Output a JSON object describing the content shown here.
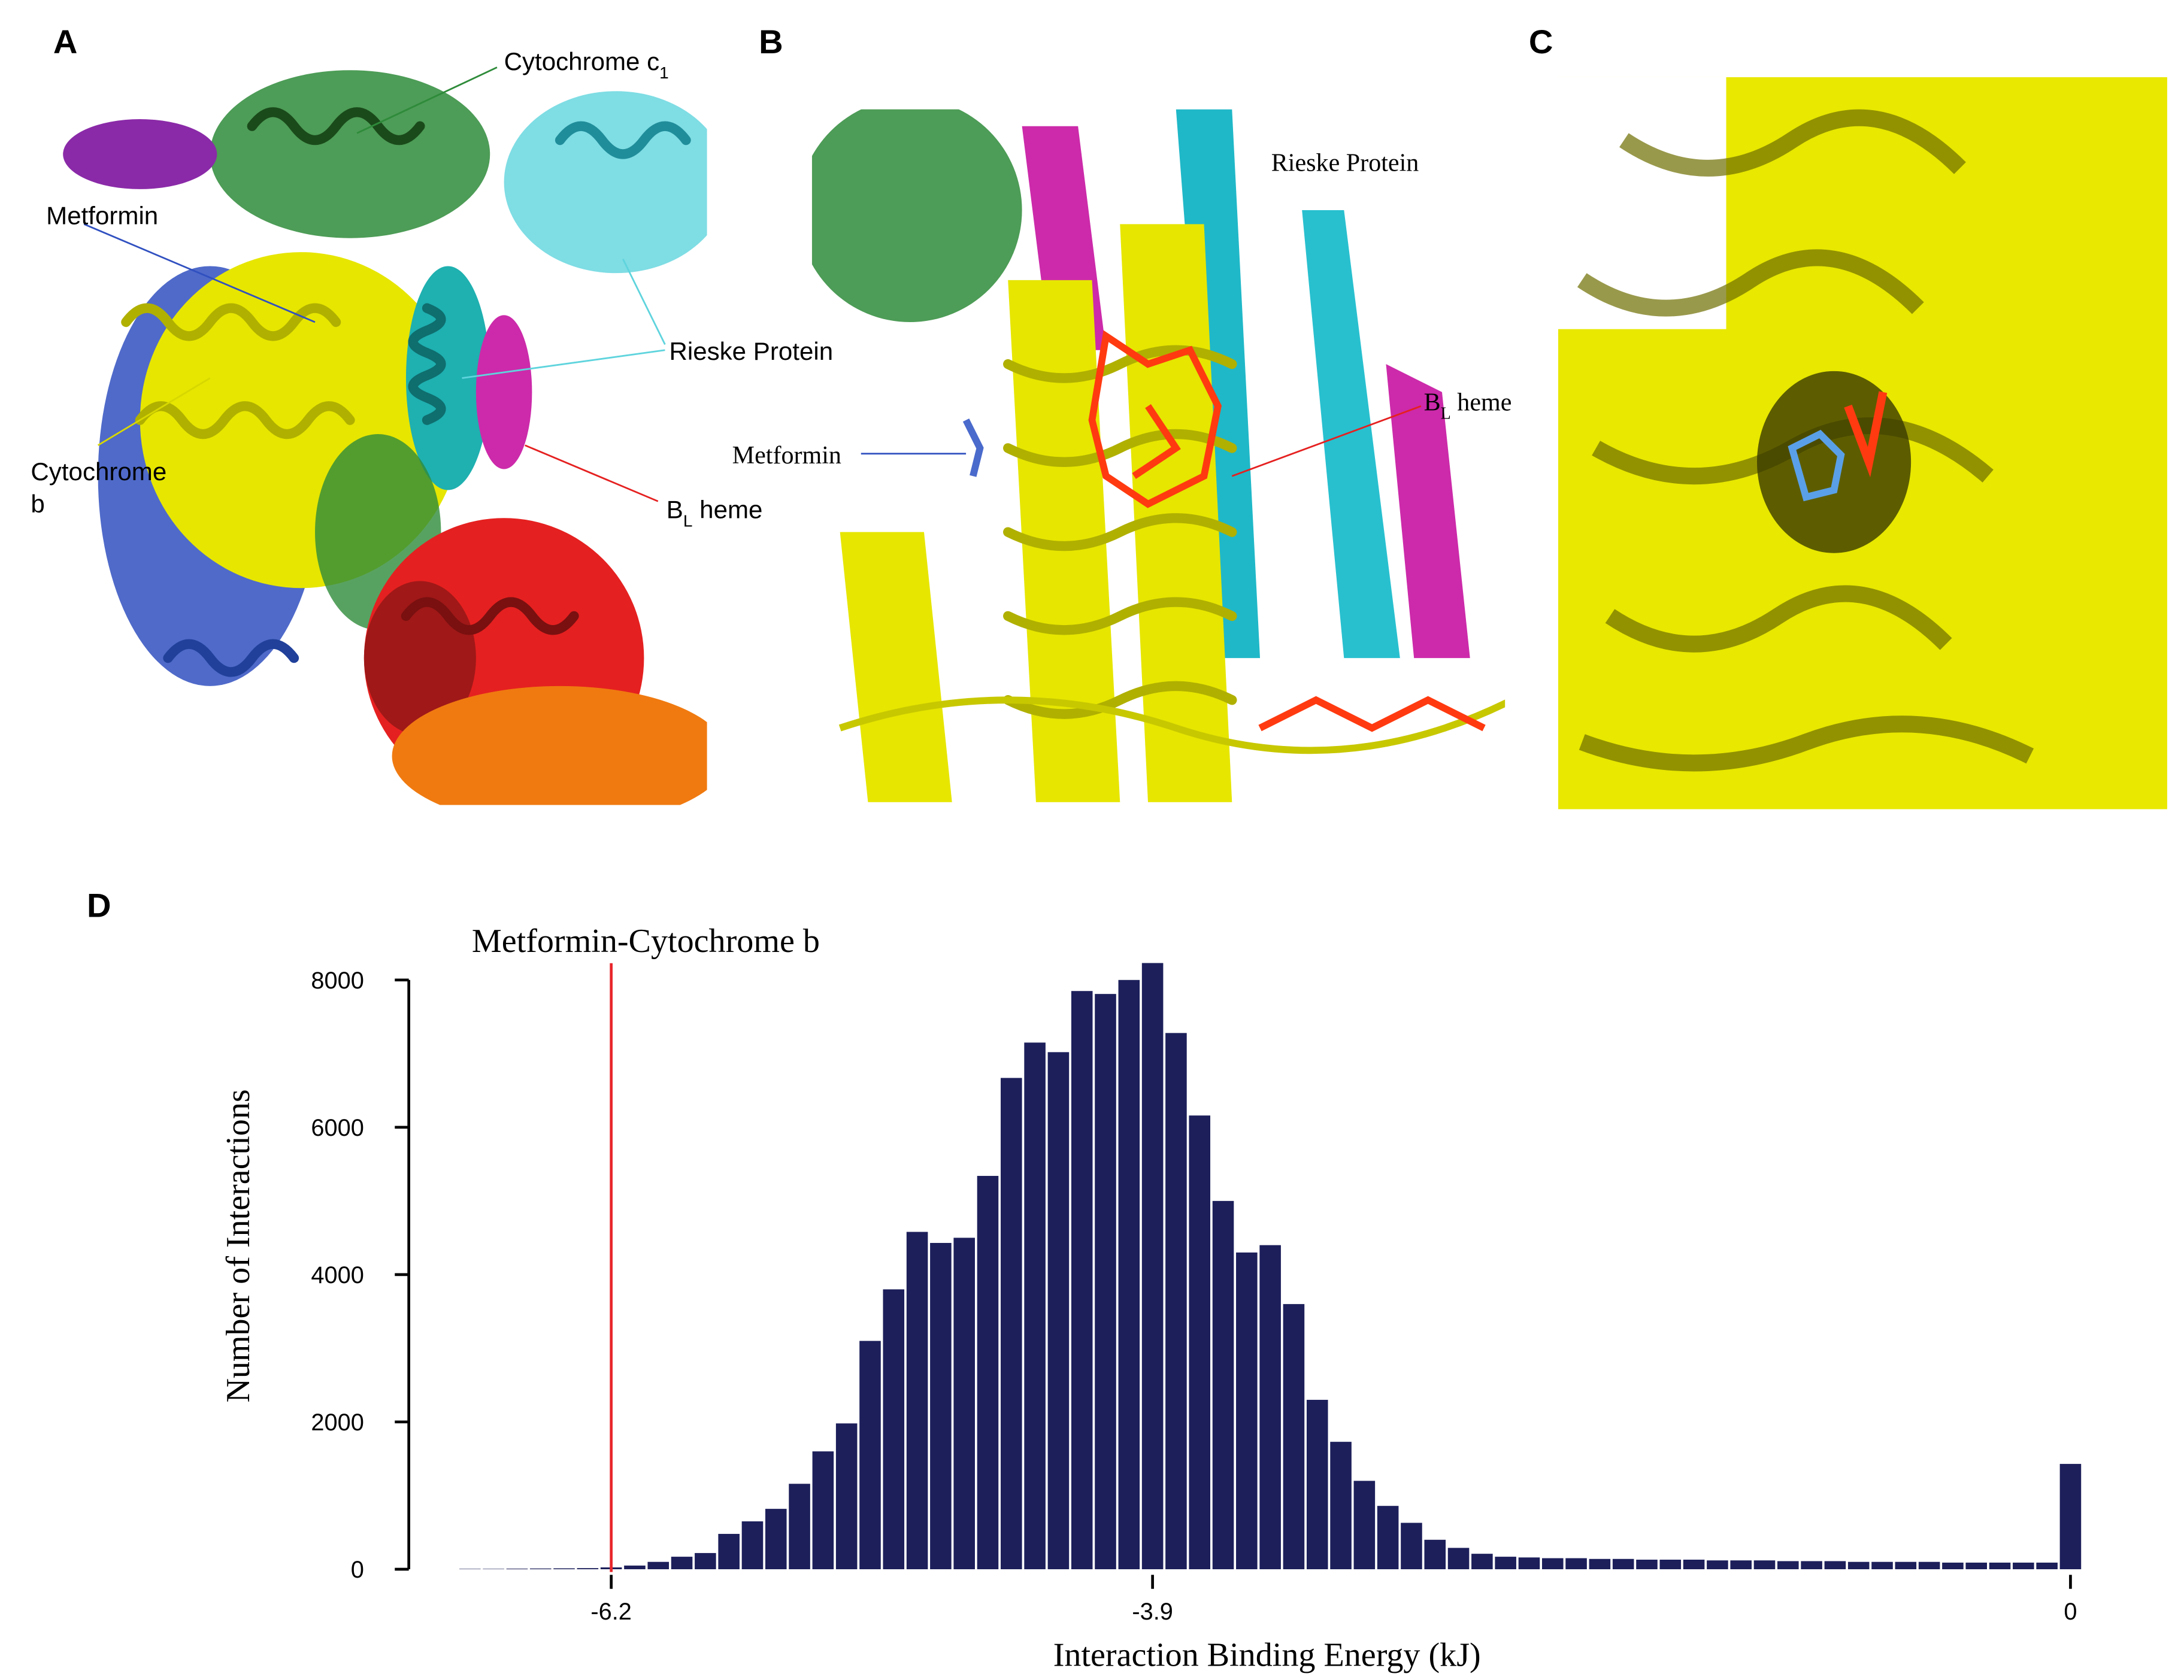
{
  "panels": [
    {
      "label": "A",
      "annotations": {
        "cytochrome_c1": [
          "Cytochrome c",
          "1"
        ],
        "metformin": "Metformin",
        "rieske": "Rieske Protein",
        "cytochrome_b": [
          "Cytochrome",
          "b"
        ],
        "bl_heme": [
          "B",
          "L",
          " heme"
        ]
      }
    },
    {
      "label": "B",
      "annotations": {
        "rieske": "Rieske Protein",
        "bl_heme": [
          "B",
          "L",
          " heme"
        ],
        "metformin": "Metformin"
      }
    },
    {
      "label": "C"
    }
  ],
  "chart_data": {
    "type": "histogram",
    "panel_label": "D",
    "x_label": "Interaction Binding Energy (kJ)",
    "y_label": "Number of Interactions",
    "color": "#1c1f5a",
    "bins": [
      -6.85,
      -6.75,
      -6.65,
      -6.55,
      -6.45,
      -6.35,
      -6.25,
      -6.15,
      -6.05,
      -5.95,
      -5.85,
      -5.75,
      -5.65,
      -5.55,
      -5.45,
      -5.35,
      -5.25,
      -5.15,
      -5.05,
      -4.95,
      -4.85,
      -4.75,
      -4.65,
      -4.55,
      -4.45,
      -4.35,
      -4.25,
      -4.15,
      -4.05,
      -3.95,
      -3.85,
      -3.75,
      -3.65,
      -3.55,
      -3.45,
      -3.35,
      -3.25,
      -3.15,
      -3.05,
      -2.95,
      -2.85,
      -2.75,
      -2.65,
      -2.55,
      -2.45,
      -2.35,
      -2.25,
      -2.15,
      -2.05,
      -1.95,
      -1.85,
      -1.75,
      -1.65,
      -1.55,
      -1.45,
      -1.35,
      -1.25,
      -1.15,
      -1.05,
      -0.95,
      -0.85,
      -0.75,
      -0.65,
      -0.55,
      -0.45,
      -0.35,
      -0.25,
      -0.15,
      -0.05,
      0.05
    ],
    "values": [
      5,
      5,
      8,
      10,
      12,
      15,
      25,
      50,
      100,
      170,
      220,
      480,
      650,
      820,
      1160,
      1600,
      1980,
      3100,
      3800,
      4580,
      4430,
      4500,
      5340,
      6670,
      7150,
      7020,
      7850,
      7810,
      8000,
      8230,
      7280,
      6160,
      5000,
      4300,
      4400,
      3600,
      2300,
      1730,
      1200,
      860,
      630,
      400,
      290,
      210,
      170,
      160,
      150,
      150,
      140,
      140,
      130,
      130,
      130,
      120,
      120,
      120,
      110,
      110,
      110,
      100,
      100,
      100,
      100,
      90,
      90,
      90,
      90,
      90,
      1430
    ],
    "xlim": [
      -7.06,
      0.06
    ],
    "ylim": [
      0,
      8000
    ],
    "xticks": [
      -6.2,
      -3.9,
      0
    ],
    "yticks": [
      0,
      2000,
      4000,
      6000,
      8000
    ],
    "reference_line": {
      "x": -6.2,
      "label": "Metformin-Cytochrome b",
      "color": "#e8262b"
    }
  }
}
